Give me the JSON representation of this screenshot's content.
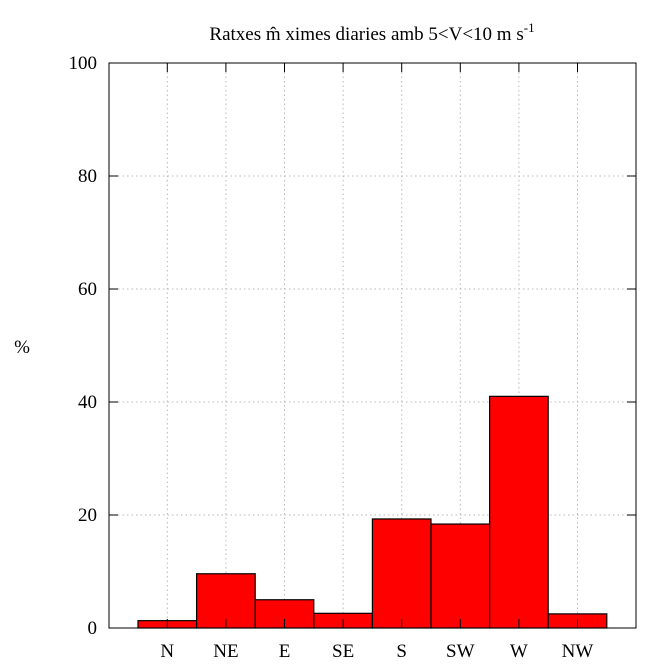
{
  "chart_data": {
    "type": "bar",
    "title": "Ratxes m̂  ximes diaries amb 5<V<10 m s",
    "title_superscript": "-1",
    "ylabel": "%",
    "xlabel": "",
    "ylim": [
      0,
      100
    ],
    "yticks": [
      0,
      20,
      40,
      60,
      80,
      100
    ],
    "grid": true,
    "categories": [
      "N",
      "NE",
      "E",
      "SE",
      "S",
      "SW",
      "W",
      "NW"
    ],
    "values": [
      1.3,
      9.6,
      5.0,
      2.6,
      19.3,
      18.4,
      41.0,
      2.5
    ],
    "bar_color": "#ff0000",
    "edge_color": "#000000"
  }
}
